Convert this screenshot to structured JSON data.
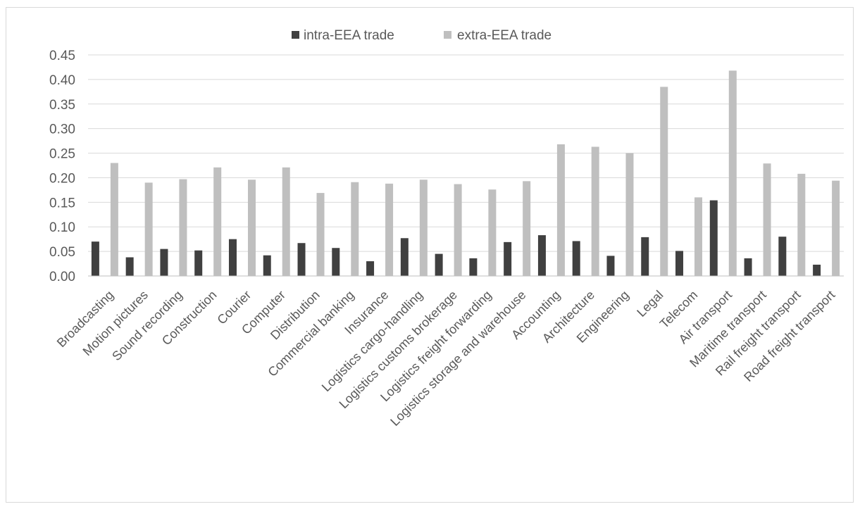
{
  "chart_data": {
    "type": "bar",
    "title": "",
    "xlabel": "",
    "ylabel": "",
    "ylim": [
      0,
      0.45
    ],
    "yticks": [
      "0.00",
      "0.05",
      "0.10",
      "0.15",
      "0.20",
      "0.25",
      "0.30",
      "0.35",
      "0.40",
      "0.45"
    ],
    "grid": true,
    "legend_position": "top",
    "categories": [
      "Broadcasting",
      "Motion pictures",
      "Sound recording",
      "Construction",
      "Courier",
      "Computer",
      "Distribution",
      "Commercial banking",
      "Insurance",
      "Logistics cargo-handling",
      "Logistics customs brokerage",
      "Logistics freight forwarding",
      "Logistics storage and warehouse",
      "Accounting",
      "Architecture",
      "Engineering",
      "Legal",
      "Telecom",
      "Air transport",
      "Maritime transport",
      "Rail freight transport",
      "Road freight transport"
    ],
    "series": [
      {
        "name": "intra-EEA trade",
        "color": "#404040",
        "values": [
          0.07,
          0.038,
          0.055,
          0.052,
          0.075,
          0.042,
          0.067,
          0.057,
          0.03,
          0.077,
          0.045,
          0.036,
          0.069,
          0.083,
          0.071,
          0.041,
          0.079,
          0.051,
          0.154,
          0.036,
          0.08,
          0.023
        ]
      },
      {
        "name": "extra-EEA trade",
        "color": "#bfbfbf",
        "values": [
          0.23,
          0.19,
          0.197,
          0.221,
          0.196,
          0.221,
          0.169,
          0.191,
          0.188,
          0.196,
          0.187,
          0.176,
          0.193,
          0.268,
          0.263,
          0.25,
          0.385,
          0.16,
          0.418,
          0.229,
          0.208,
          0.194
        ]
      }
    ]
  }
}
